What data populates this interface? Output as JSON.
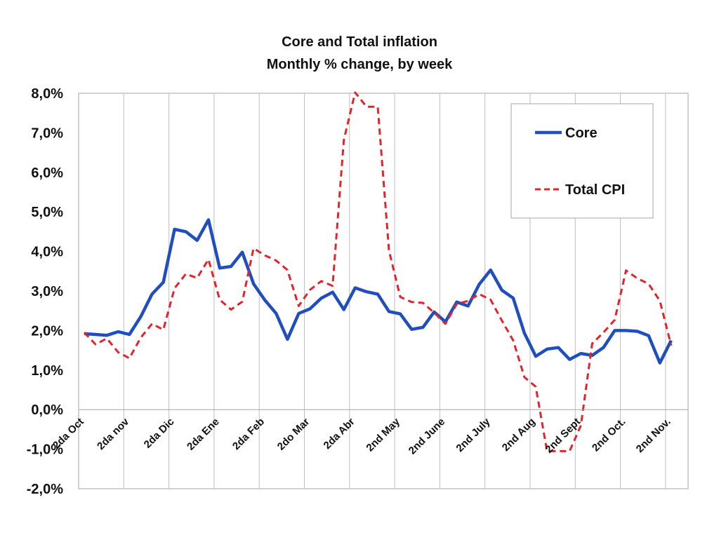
{
  "chart_data": {
    "type": "line",
    "title": "Core and Total inflation",
    "subtitle": "Monthly % change, by week",
    "xlabel": "",
    "ylabel": "",
    "ylim": [
      -2,
      8
    ],
    "ytick_step": 1,
    "y_tick_labels": [
      "-2,0%",
      "-1,0%",
      "0,0%",
      "1,0%",
      "2,0%",
      "3,0%",
      "4,0%",
      "5,0%",
      "6,0%",
      "7,0%",
      "8,0%"
    ],
    "x_tick_labels": [
      {
        "label": "2da Oct",
        "index": 0
      },
      {
        "label": "2da nov",
        "index": 4
      },
      {
        "label": "2da Dic",
        "index": 8
      },
      {
        "label": "2da Ene",
        "index": 12
      },
      {
        "label": "2da Feb",
        "index": 16
      },
      {
        "label": "2do Mar",
        "index": 20
      },
      {
        "label": "2da Abr",
        "index": 24
      },
      {
        "label": "2nd May",
        "index": 28
      },
      {
        "label": "2nd June",
        "index": 32
      },
      {
        "label": "2nd July",
        "index": 36
      },
      {
        "label": "2nd Aug",
        "index": 40
      },
      {
        "label": "2nd Sept",
        "index": 44
      },
      {
        "label": "2nd Oct.",
        "index": 48
      },
      {
        "label": "2nd Nov.",
        "index": 52
      }
    ],
    "grid": "vertical",
    "legend_position": "top-right",
    "series": [
      {
        "name": "Core",
        "color": "#1f4fbf",
        "style": "solid",
        "values": [
          1.92,
          1.9,
          1.88,
          1.97,
          1.9,
          2.35,
          2.92,
          3.22,
          4.56,
          4.5,
          4.28,
          4.8,
          3.58,
          3.62,
          3.98,
          3.18,
          2.77,
          2.43,
          1.78,
          2.43,
          2.55,
          2.82,
          2.97,
          2.53,
          3.08,
          2.98,
          2.92,
          2.48,
          2.42,
          2.03,
          2.08,
          2.47,
          2.22,
          2.72,
          2.62,
          3.17,
          3.53,
          3.02,
          2.82,
          1.93,
          1.35,
          1.53,
          1.57,
          1.27,
          1.42,
          1.37,
          1.57,
          2.0,
          2.0,
          1.98,
          1.87,
          1.18,
          1.75
        ]
      },
      {
        "name": "Total CPI",
        "color": "#e3242b",
        "style": "dashed",
        "values": [
          1.95,
          1.65,
          1.8,
          1.45,
          1.3,
          1.82,
          2.17,
          2.02,
          3.07,
          3.43,
          3.33,
          3.8,
          2.78,
          2.53,
          2.73,
          4.08,
          3.9,
          3.77,
          3.53,
          2.62,
          3.03,
          3.25,
          3.13,
          6.82,
          8.02,
          7.66,
          7.66,
          4.02,
          2.85,
          2.72,
          2.7,
          2.45,
          2.17,
          2.67,
          2.75,
          2.92,
          2.78,
          2.25,
          1.75,
          0.82,
          0.58,
          -1.05,
          -1.05,
          -1.05,
          -0.4,
          1.67,
          1.95,
          2.27,
          3.52,
          3.32,
          3.18,
          2.75,
          1.62
        ]
      }
    ]
  }
}
